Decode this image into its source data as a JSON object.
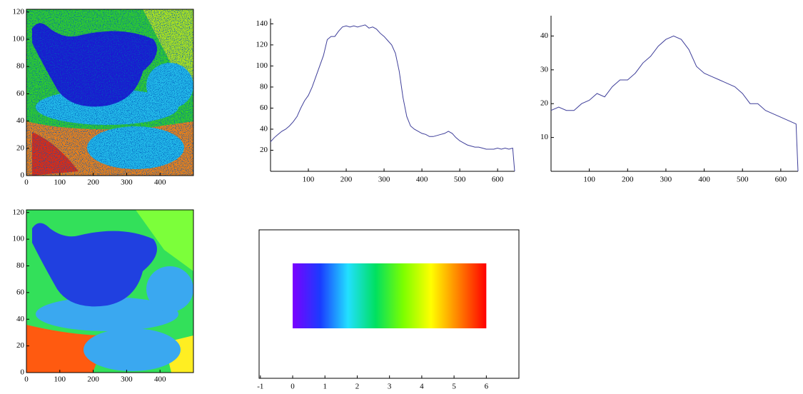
{
  "chart_data": [
    {
      "type": "contour",
      "xlim": [
        0,
        500
      ],
      "ylim": [
        0,
        122
      ],
      "xticks": [
        0,
        100,
        200,
        300,
        400
      ],
      "yticks": [
        0,
        20,
        40,
        60,
        80,
        100,
        120
      ]
    },
    {
      "type": "contour",
      "xlim": [
        0,
        500
      ],
      "ylim": [
        0,
        122
      ],
      "xticks": [
        0,
        100,
        200,
        300,
        400
      ],
      "yticks": [
        0,
        20,
        40,
        60,
        80,
        100,
        120
      ]
    },
    {
      "type": "line",
      "color": "#3f3f9a",
      "x": [
        0,
        10,
        20,
        30,
        40,
        50,
        60,
        70,
        80,
        90,
        100,
        110,
        120,
        130,
        140,
        150,
        160,
        170,
        180,
        190,
        200,
        210,
        220,
        230,
        240,
        250,
        260,
        270,
        280,
        290,
        300,
        310,
        320,
        330,
        340,
        350,
        360,
        370,
        380,
        390,
        400,
        410,
        420,
        430,
        440,
        450,
        460,
        470,
        480,
        490,
        500,
        510,
        520,
        530,
        540,
        550,
        560,
        570,
        580,
        590,
        600,
        610,
        620,
        630,
        640,
        645
      ],
      "values": [
        28,
        32,
        35,
        38,
        40,
        43,
        47,
        52,
        60,
        67,
        72,
        80,
        90,
        100,
        110,
        125,
        128,
        128,
        133,
        137,
        138,
        137,
        138,
        137,
        138,
        139,
        136,
        137,
        135,
        131,
        128,
        124,
        120,
        112,
        95,
        70,
        52,
        43,
        40,
        38,
        36,
        35,
        33,
        33,
        34,
        35,
        36,
        38,
        36,
        32,
        29,
        27,
        25,
        24,
        23,
        23,
        22,
        21,
        21,
        21,
        22,
        21,
        22,
        21,
        22,
        0
      ],
      "xlim": [
        0,
        645
      ],
      "ylim": [
        0,
        145
      ],
      "xticks": [
        100,
        200,
        300,
        400,
        500,
        600
      ],
      "yticks": [
        20,
        40,
        60,
        80,
        100,
        120,
        140
      ]
    },
    {
      "type": "line",
      "color": "#3f3f9a",
      "x": [
        0,
        20,
        40,
        60,
        80,
        100,
        120,
        140,
        160,
        180,
        200,
        220,
        240,
        260,
        280,
        300,
        320,
        340,
        360,
        380,
        400,
        420,
        440,
        460,
        480,
        500,
        520,
        540,
        560,
        580,
        600,
        620,
        640,
        645
      ],
      "values": [
        18,
        19,
        18,
        18,
        20,
        21,
        23,
        22,
        25,
        27,
        27,
        29,
        32,
        34,
        37,
        39,
        40,
        39,
        36,
        31,
        29,
        28,
        27,
        26,
        25,
        23,
        20,
        20,
        18,
        17,
        16,
        15,
        14,
        0
      ],
      "xlim": [
        0,
        645
      ],
      "ylim": [
        0,
        46
      ],
      "xticks": [
        100,
        200,
        300,
        400,
        500,
        600
      ],
      "yticks": [
        10,
        20,
        30,
        40
      ]
    },
    {
      "type": "colorbar",
      "range": [
        0,
        6
      ],
      "colors": [
        "#7a00ff",
        "#1a3cff",
        "#22e0ff",
        "#00e060",
        "#7cff00",
        "#ffff00",
        "#ff8000",
        "#ff0000"
      ],
      "xlim": [
        -1.04,
        7.01
      ],
      "xticks": [
        -1,
        0,
        1,
        2,
        3,
        4,
        5,
        6
      ]
    }
  ]
}
